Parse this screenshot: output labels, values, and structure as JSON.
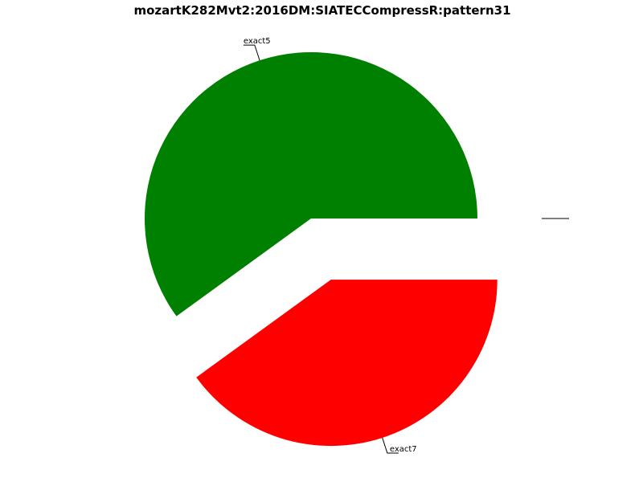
{
  "chart_data": {
    "type": "pie",
    "title": "mozartK282Mvt2:2016DM:SIATECCompressR:pattern31",
    "slices": [
      {
        "label": "exact5",
        "value": 0.6,
        "color": "#008000",
        "exploded": false
      },
      {
        "label": "exact7",
        "value": 0.4,
        "color": "#ff0000",
        "exploded": true
      },
      {
        "label": "",
        "value": 0.0,
        "color": "#ffffff",
        "exploded": true
      }
    ]
  }
}
